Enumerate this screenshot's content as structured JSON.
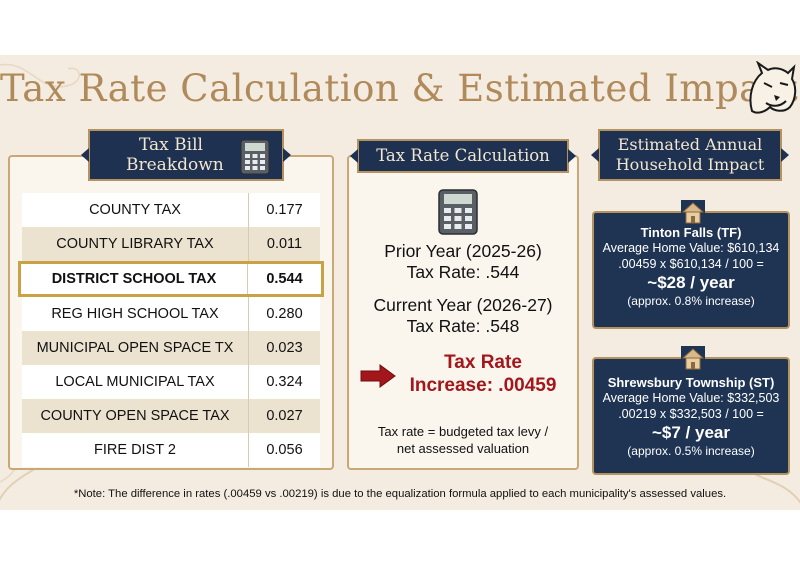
{
  "title": "Tax Rate Calculation & Estimated Impact",
  "breakdown": {
    "header_line1": "Tax Bill",
    "header_line2": "Breakdown",
    "rows": [
      {
        "name": "COUNTY TAX",
        "value": "0.177"
      },
      {
        "name": "COUNTY LIBRARY TAX",
        "value": "0.011"
      },
      {
        "name": "DISTRICT SCHOOL TAX",
        "value": "0.544"
      },
      {
        "name": "REG HIGH SCHOOL TAX",
        "value": "0.280"
      },
      {
        "name": "MUNICIPAL OPEN SPACE TX",
        "value": "0.023"
      },
      {
        "name": "LOCAL MUNICIPAL TAX",
        "value": "0.324"
      },
      {
        "name": "COUNTY OPEN SPACE TAX",
        "value": "0.027"
      },
      {
        "name": "FIRE DIST 2",
        "value": "0.056"
      }
    ]
  },
  "calculation": {
    "header": "Tax Rate Calculation",
    "prior_year": "Prior Year (2025-26)",
    "prior_rate": "Tax Rate: .544",
    "current_year": "Current Year (2026-27)",
    "current_rate": "Tax Rate: .548",
    "increase_line1": "Tax Rate",
    "increase_line2": "Increase: .00459",
    "formula_line1": "Tax rate = budgeted tax levy /",
    "formula_line2": "net assessed valuation"
  },
  "impact": {
    "header_line1": "Estimated Annual",
    "header_line2": "Household Impact",
    "boxes": [
      {
        "municipality": "Tinton Falls (TF)",
        "home_value": "Average Home Value: $610,134",
        "formula": ".00459 x $610,134 / 100 =",
        "result": "~$28 / year",
        "percent": "(approx. 0.8% increase)"
      },
      {
        "municipality": "Shrewsbury Township (ST)",
        "home_value": "Average Home Value: $332,503",
        "formula": ".00219 x $332,503 / 100 =",
        "result": "~$7 / year",
        "percent": "(approx. 0.5% increase)"
      }
    ]
  },
  "note": "*Note: The difference in rates (.00459 vs .00219) is due to the equalization formula applied to each municipality's assessed values.",
  "colors": {
    "navy": "#1e3150",
    "gold": "#b5935e",
    "title": "#b08a5a",
    "red": "#a3161b",
    "background": "#f4ece0"
  }
}
